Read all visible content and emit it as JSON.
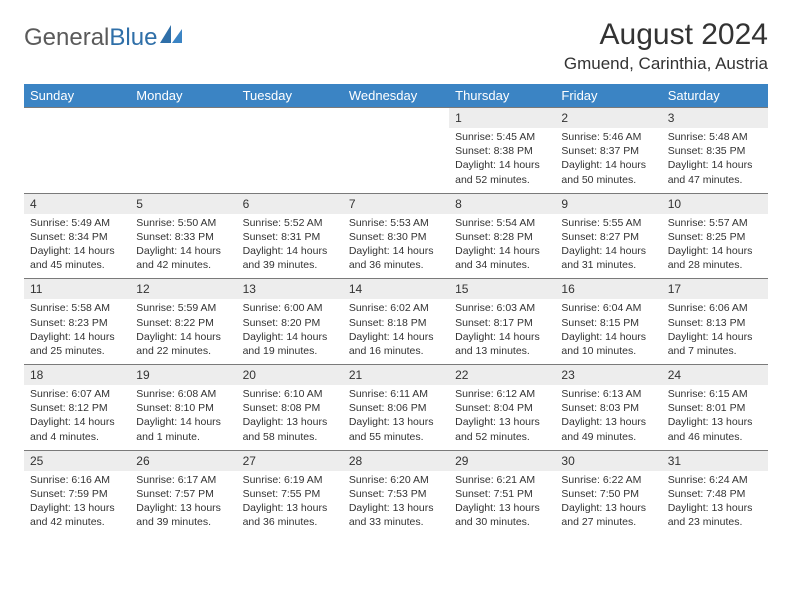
{
  "brand": {
    "part1": "General",
    "part2": "Blue"
  },
  "title": "August 2024",
  "location": "Gmuend, Carinthia, Austria",
  "colors": {
    "header_bg": "#3b84c4",
    "header_text": "#ffffff",
    "daynum_bg": "#ededed",
    "border": "#7a7a7a",
    "brand_gray": "#5a5a5a",
    "brand_blue": "#2f6fa8"
  },
  "weekdays": [
    "Sunday",
    "Monday",
    "Tuesday",
    "Wednesday",
    "Thursday",
    "Friday",
    "Saturday"
  ],
  "weeks": [
    {
      "nums": [
        "",
        "",
        "",
        "",
        "1",
        "2",
        "3"
      ],
      "cells": [
        "",
        "",
        "",
        "",
        "Sunrise: 5:45 AM\nSunset: 8:38 PM\nDaylight: 14 hours and 52 minutes.",
        "Sunrise: 5:46 AM\nSunset: 8:37 PM\nDaylight: 14 hours and 50 minutes.",
        "Sunrise: 5:48 AM\nSunset: 8:35 PM\nDaylight: 14 hours and 47 minutes."
      ]
    },
    {
      "nums": [
        "4",
        "5",
        "6",
        "7",
        "8",
        "9",
        "10"
      ],
      "cells": [
        "Sunrise: 5:49 AM\nSunset: 8:34 PM\nDaylight: 14 hours and 45 minutes.",
        "Sunrise: 5:50 AM\nSunset: 8:33 PM\nDaylight: 14 hours and 42 minutes.",
        "Sunrise: 5:52 AM\nSunset: 8:31 PM\nDaylight: 14 hours and 39 minutes.",
        "Sunrise: 5:53 AM\nSunset: 8:30 PM\nDaylight: 14 hours and 36 minutes.",
        "Sunrise: 5:54 AM\nSunset: 8:28 PM\nDaylight: 14 hours and 34 minutes.",
        "Sunrise: 5:55 AM\nSunset: 8:27 PM\nDaylight: 14 hours and 31 minutes.",
        "Sunrise: 5:57 AM\nSunset: 8:25 PM\nDaylight: 14 hours and 28 minutes."
      ]
    },
    {
      "nums": [
        "11",
        "12",
        "13",
        "14",
        "15",
        "16",
        "17"
      ],
      "cells": [
        "Sunrise: 5:58 AM\nSunset: 8:23 PM\nDaylight: 14 hours and 25 minutes.",
        "Sunrise: 5:59 AM\nSunset: 8:22 PM\nDaylight: 14 hours and 22 minutes.",
        "Sunrise: 6:00 AM\nSunset: 8:20 PM\nDaylight: 14 hours and 19 minutes.",
        "Sunrise: 6:02 AM\nSunset: 8:18 PM\nDaylight: 14 hours and 16 minutes.",
        "Sunrise: 6:03 AM\nSunset: 8:17 PM\nDaylight: 14 hours and 13 minutes.",
        "Sunrise: 6:04 AM\nSunset: 8:15 PM\nDaylight: 14 hours and 10 minutes.",
        "Sunrise: 6:06 AM\nSunset: 8:13 PM\nDaylight: 14 hours and 7 minutes."
      ]
    },
    {
      "nums": [
        "18",
        "19",
        "20",
        "21",
        "22",
        "23",
        "24"
      ],
      "cells": [
        "Sunrise: 6:07 AM\nSunset: 8:12 PM\nDaylight: 14 hours and 4 minutes.",
        "Sunrise: 6:08 AM\nSunset: 8:10 PM\nDaylight: 14 hours and 1 minute.",
        "Sunrise: 6:10 AM\nSunset: 8:08 PM\nDaylight: 13 hours and 58 minutes.",
        "Sunrise: 6:11 AM\nSunset: 8:06 PM\nDaylight: 13 hours and 55 minutes.",
        "Sunrise: 6:12 AM\nSunset: 8:04 PM\nDaylight: 13 hours and 52 minutes.",
        "Sunrise: 6:13 AM\nSunset: 8:03 PM\nDaylight: 13 hours and 49 minutes.",
        "Sunrise: 6:15 AM\nSunset: 8:01 PM\nDaylight: 13 hours and 46 minutes."
      ]
    },
    {
      "nums": [
        "25",
        "26",
        "27",
        "28",
        "29",
        "30",
        "31"
      ],
      "cells": [
        "Sunrise: 6:16 AM\nSunset: 7:59 PM\nDaylight: 13 hours and 42 minutes.",
        "Sunrise: 6:17 AM\nSunset: 7:57 PM\nDaylight: 13 hours and 39 minutes.",
        "Sunrise: 6:19 AM\nSunset: 7:55 PM\nDaylight: 13 hours and 36 minutes.",
        "Sunrise: 6:20 AM\nSunset: 7:53 PM\nDaylight: 13 hours and 33 minutes.",
        "Sunrise: 6:21 AM\nSunset: 7:51 PM\nDaylight: 13 hours and 30 minutes.",
        "Sunrise: 6:22 AM\nSunset: 7:50 PM\nDaylight: 13 hours and 27 minutes.",
        "Sunrise: 6:24 AM\nSunset: 7:48 PM\nDaylight: 13 hours and 23 minutes."
      ]
    }
  ]
}
